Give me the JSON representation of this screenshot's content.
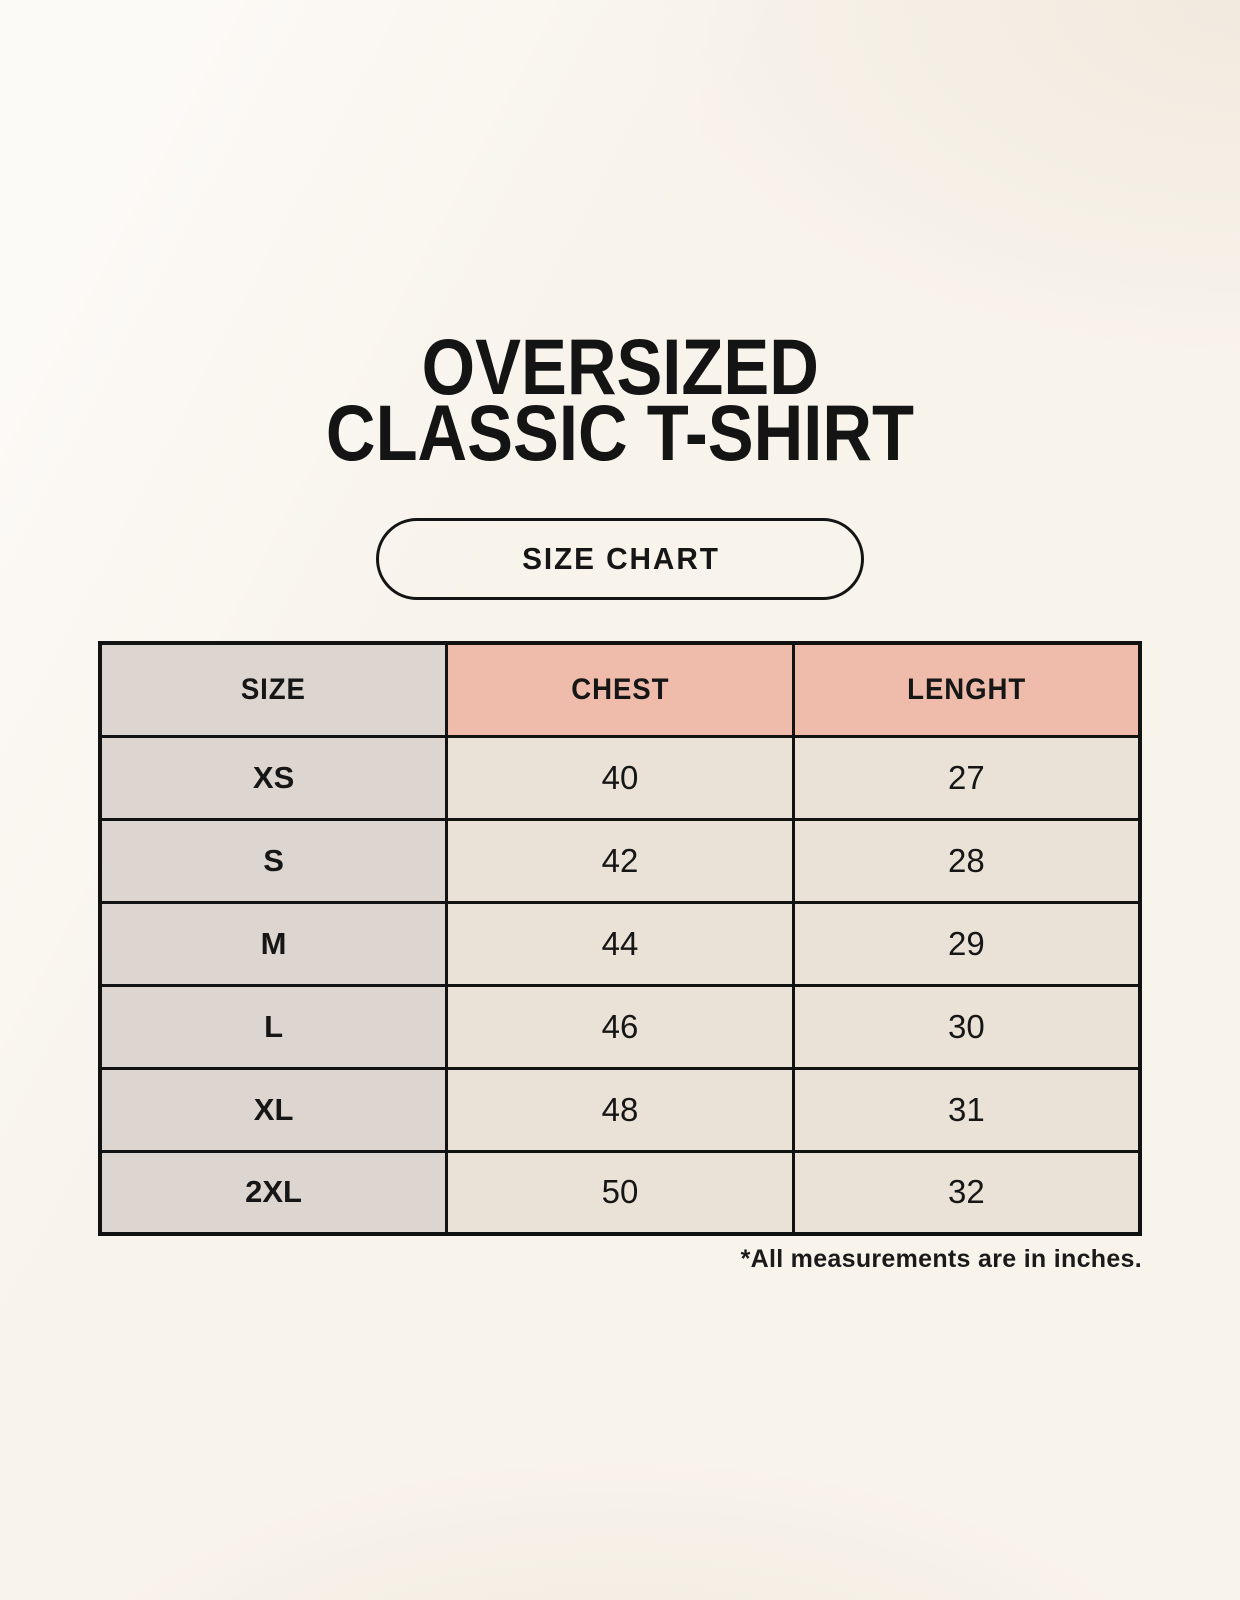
{
  "title": {
    "line1": "OVERSIZED",
    "line2": "CLASSIC T-SHIRT"
  },
  "size_chart_button": {
    "label": "SIZE CHART"
  },
  "footnote": "*All measurements are in inches.",
  "colors": {
    "page_background": "#f8f3eb",
    "size_column_bg": "#ddd5cf",
    "measure_header_bg": "#efbcab",
    "value_cell_bg": "#eae2d6",
    "border": "#121212",
    "text": "#161616"
  },
  "chart_data": {
    "type": "table",
    "title": "OVERSIZED CLASSIC T-SHIRT",
    "subtitle": "SIZE CHART",
    "columns": [
      "SIZE",
      "CHEST",
      "LENGHT"
    ],
    "rows": [
      [
        "XS",
        "40",
        "27"
      ],
      [
        "S",
        "42",
        "28"
      ],
      [
        "M",
        "44",
        "29"
      ],
      [
        "L",
        "46",
        "30"
      ],
      [
        "XL",
        "48",
        "31"
      ],
      [
        "2XL",
        "50",
        "32"
      ]
    ],
    "footnote": "*All measurements are in inches.",
    "units": "inches",
    "layout": "3 equal columns, header row highlighted"
  }
}
